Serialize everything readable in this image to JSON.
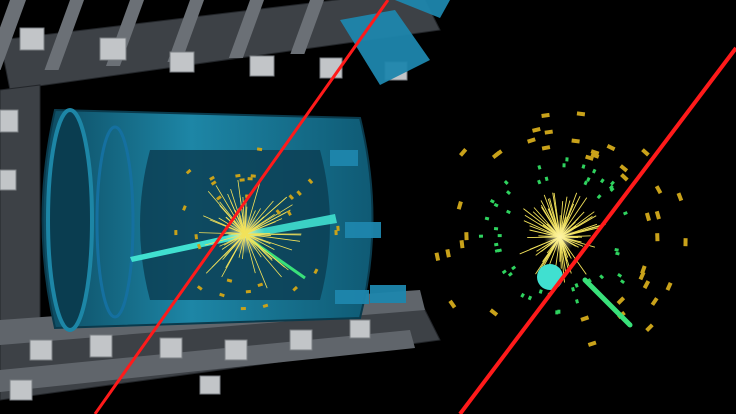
{
  "scene": {
    "description_free": true,
    "colors": {
      "background": "#000000",
      "detector_blue": "#1b7f9e",
      "detector_dark": "#0e4f66",
      "frame_grey": "#5a5e63",
      "frame_light": "#b9bcbf",
      "muon_track": "#ff1a1a",
      "electron_jet": "#40e0d0",
      "green_track": "#39e07a",
      "yellow_tracks": "#f2e25a",
      "calorimeter_hits": "#c9a21a",
      "green_hits": "#2fd35f"
    },
    "icons": {
      "left_view": "detector-cutaway-icon",
      "right_view": "transverse-view-icon"
    }
  }
}
